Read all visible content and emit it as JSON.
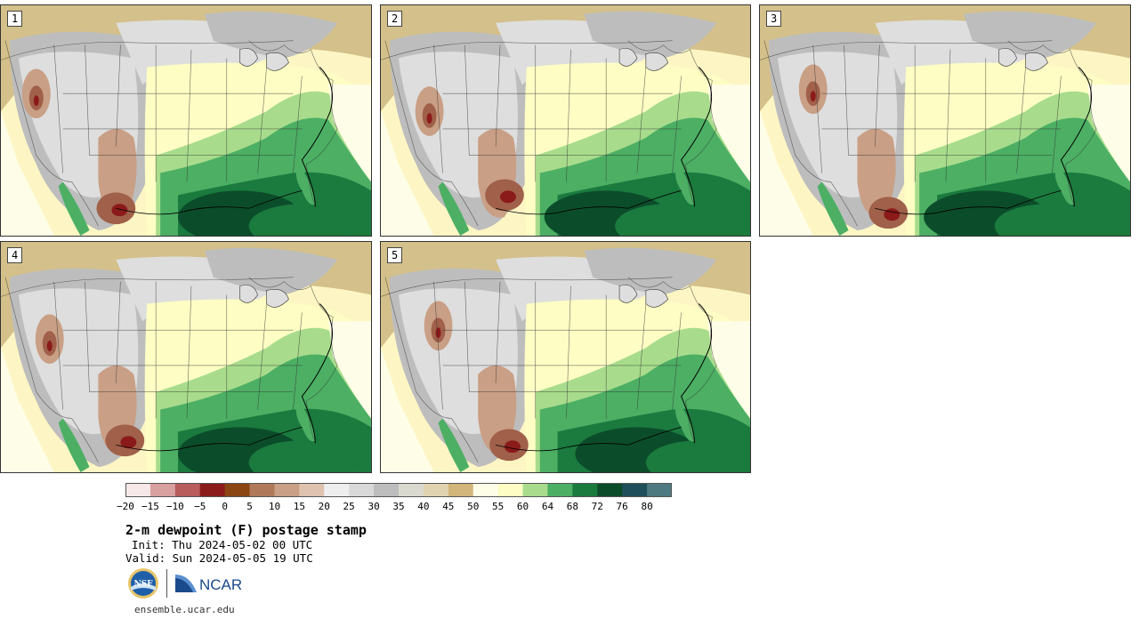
{
  "panels": [
    {
      "label": "1"
    },
    {
      "label": "2"
    },
    {
      "label": "3"
    },
    {
      "label": "4"
    },
    {
      "label": "5"
    }
  ],
  "colorbar": {
    "colors": [
      "#f6e8e8",
      "#d9a0a0",
      "#b85c5c",
      "#8b1a1a",
      "#8b4513",
      "#b07a5a",
      "#c99f85",
      "#e0c2b1",
      "#eeeeee",
      "#d9d9d9",
      "#bdbdbd",
      "#d9d9d0",
      "#e0d4b0",
      "#d1b57a",
      "#fefee8",
      "#fdfdc4",
      "#a8dc8c",
      "#4caf64",
      "#1b7a3e",
      "#0b4d2a",
      "#1f4f5a",
      "#4d7a80"
    ],
    "tick_labels": [
      "−20",
      "−15",
      "−10",
      "−5",
      "0",
      "5",
      "10",
      "15",
      "20",
      "25",
      "30",
      "35",
      "40",
      "45",
      "50",
      "55",
      "60",
      "64",
      "68",
      "72",
      "76",
      "80"
    ]
  },
  "title": "2-m dewpoint (F) postage stamp",
  "init": "Init: Thu 2024-05-02 00 UTC",
  "valid": "Valid: Sun 2024-05-05 19 UTC",
  "logos": {
    "nsf": "NSF",
    "ncar": "NCAR"
  },
  "footer_url": "ensemble.ucar.edu"
}
